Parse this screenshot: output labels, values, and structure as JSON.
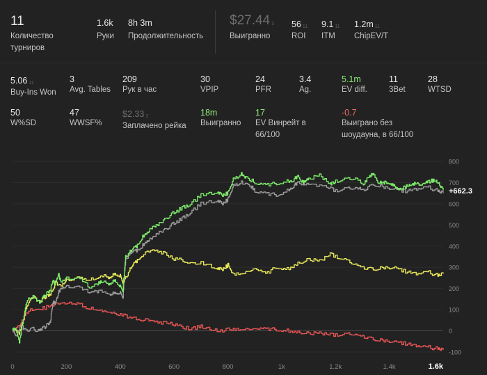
{
  "top_stats": {
    "tournaments": {
      "value": "11",
      "label": "Количество турниров"
    },
    "hands": {
      "value": "1.6k",
      "label": "Руки"
    },
    "duration": {
      "value": "8h 3m",
      "label": "Продолжительность"
    },
    "won": {
      "value": "$27.44",
      "sub": "3",
      "label": "Выигранно"
    },
    "roi": {
      "value": "56",
      "sub": "11",
      "label": "ROI"
    },
    "itm": {
      "value": "9.1",
      "sub": "11",
      "label": "ITM"
    },
    "chipev": {
      "value": "1.2m",
      "sub": "11",
      "label": "ChipEV/T"
    }
  },
  "stats_row1": [
    {
      "value": "5.06",
      "sub": "11",
      "label": "Buy-Ins Won",
      "color": "#e8e8e8"
    },
    {
      "value": "3",
      "sub": "",
      "label": "Avg. Tables",
      "color": "#e8e8e8"
    },
    {
      "value": "209",
      "sub": "",
      "label": "Рук в час",
      "color": "#e8e8e8"
    },
    {
      "value": "30",
      "sub": "",
      "label": "VPIP",
      "color": "#e8e8e8"
    },
    {
      "value": "24",
      "sub": "",
      "label": "PFR",
      "color": "#e8e8e8"
    },
    {
      "value": "3.4",
      "sub": "",
      "label": "Ag.",
      "color": "#e8e8e8"
    },
    {
      "value": "5.1m",
      "sub": "",
      "label": "EV diff.",
      "color": "#8fea7a"
    },
    {
      "value": "11",
      "sub": "",
      "label": "3Bet",
      "color": "#e8e8e8"
    },
    {
      "value": "28",
      "sub": "",
      "label": "WTSD",
      "color": "#e8e8e8"
    }
  ],
  "stats_row2": [
    {
      "value": "50",
      "sub": "",
      "label": "W%SD",
      "color": "#e8e8e8"
    },
    {
      "value": "47",
      "sub": "",
      "label": "WWSF%",
      "color": "#e8e8e8"
    },
    {
      "value": "$2.33",
      "sub": "3",
      "label": "Заплачено рейка",
      "color": "#6f6f6f"
    },
    {
      "value": "18m",
      "sub": "",
      "label": "Выигранно",
      "color": "#8fea7a"
    },
    {
      "value": "17",
      "sub": "",
      "label": "EV Винрейт в 66/100",
      "color": "#8fea7a"
    },
    {
      "value": "-0.7",
      "sub": "",
      "label": "Выиграно без шоудауна, в 66/100",
      "color": "#ef6a6a"
    }
  ],
  "chart_data": {
    "type": "line",
    "x_ticks": [
      "0",
      "200",
      "400",
      "600",
      "800",
      "1k",
      "1.2k",
      "1.4k",
      "1.6k"
    ],
    "y_ticks": [
      "800",
      "700",
      "600",
      "500",
      "400",
      "300",
      "200",
      "100",
      "0",
      "-100"
    ],
    "xlim": [
      0,
      1600
    ],
    "ylim": [
      -100,
      800
    ],
    "end_label": "+662.3",
    "grid": true,
    "series": [
      {
        "color": "#7de86a",
        "points": [
          [
            0,
            0
          ],
          [
            10,
            20
          ],
          [
            25,
            -50
          ],
          [
            40,
            60
          ],
          [
            55,
            150
          ],
          [
            80,
            160
          ],
          [
            100,
            130
          ],
          [
            120,
            170
          ],
          [
            140,
            190
          ],
          [
            150,
            240
          ],
          [
            160,
            220
          ],
          [
            170,
            270
          ],
          [
            180,
            230
          ],
          [
            200,
            250
          ],
          [
            260,
            240
          ],
          [
            290,
            200
          ],
          [
            320,
            230
          ],
          [
            340,
            230
          ],
          [
            360,
            220
          ],
          [
            380,
            240
          ],
          [
            400,
            210
          ],
          [
            410,
            190
          ],
          [
            420,
            350
          ],
          [
            440,
            380
          ],
          [
            460,
            400
          ],
          [
            480,
            440
          ],
          [
            500,
            460
          ],
          [
            520,
            490
          ],
          [
            540,
            500
          ],
          [
            570,
            530
          ],
          [
            600,
            560
          ],
          [
            630,
            580
          ],
          [
            660,
            600
          ],
          [
            700,
            640
          ],
          [
            760,
            660
          ],
          [
            780,
            640
          ],
          [
            800,
            650
          ],
          [
            820,
            720
          ],
          [
            850,
            740
          ],
          [
            870,
            725
          ],
          [
            900,
            700
          ],
          [
            940,
            690
          ],
          [
            980,
            695
          ],
          [
            1020,
            705
          ],
          [
            1040,
            710
          ],
          [
            1060,
            730
          ],
          [
            1080,
            700
          ],
          [
            1100,
            720
          ],
          [
            1140,
            735
          ],
          [
            1180,
            690
          ],
          [
            1200,
            705
          ],
          [
            1240,
            715
          ],
          [
            1280,
            720
          ],
          [
            1300,
            690
          ],
          [
            1320,
            720
          ],
          [
            1340,
            745
          ],
          [
            1360,
            700
          ],
          [
            1380,
            700
          ],
          [
            1400,
            700
          ],
          [
            1420,
            680
          ],
          [
            1440,
            670
          ],
          [
            1460,
            680
          ],
          [
            1480,
            690
          ],
          [
            1500,
            700
          ],
          [
            1520,
            690
          ],
          [
            1540,
            700
          ],
          [
            1560,
            710
          ],
          [
            1580,
            700
          ],
          [
            1600,
            662.3
          ]
        ]
      },
      {
        "color": "#9a9a9a",
        "points": [
          [
            0,
            0
          ],
          [
            15,
            -20
          ],
          [
            30,
            30
          ],
          [
            50,
            0
          ],
          [
            70,
            10
          ],
          [
            100,
            0
          ],
          [
            120,
            20
          ],
          [
            140,
            40
          ],
          [
            150,
            140
          ],
          [
            160,
            130
          ],
          [
            170,
            180
          ],
          [
            180,
            200
          ],
          [
            200,
            210
          ],
          [
            260,
            200
          ],
          [
            290,
            180
          ],
          [
            320,
            190
          ],
          [
            360,
            170
          ],
          [
            380,
            180
          ],
          [
            400,
            180
          ],
          [
            410,
            160
          ],
          [
            420,
            340
          ],
          [
            440,
            370
          ],
          [
            460,
            380
          ],
          [
            480,
            400
          ],
          [
            500,
            420
          ],
          [
            520,
            440
          ],
          [
            540,
            460
          ],
          [
            570,
            480
          ],
          [
            600,
            510
          ],
          [
            630,
            530
          ],
          [
            660,
            560
          ],
          [
            700,
            600
          ],
          [
            760,
            620
          ],
          [
            780,
            600
          ],
          [
            800,
            620
          ],
          [
            820,
            690
          ],
          [
            850,
            700
          ],
          [
            880,
            690
          ],
          [
            900,
            660
          ],
          [
            940,
            650
          ],
          [
            980,
            640
          ],
          [
            1020,
            660
          ],
          [
            1040,
            680
          ],
          [
            1060,
            700
          ],
          [
            1100,
            690
          ],
          [
            1160,
            680
          ],
          [
            1200,
            660
          ],
          [
            1240,
            670
          ],
          [
            1280,
            675
          ],
          [
            1300,
            665
          ],
          [
            1340,
            690
          ],
          [
            1380,
            680
          ],
          [
            1420,
            670
          ],
          [
            1460,
            660
          ],
          [
            1500,
            670
          ],
          [
            1540,
            680
          ],
          [
            1580,
            660
          ],
          [
            1600,
            650
          ]
        ]
      },
      {
        "color": "#e8e85a",
        "points": [
          [
            0,
            0
          ],
          [
            10,
            15
          ],
          [
            25,
            -10
          ],
          [
            40,
            60
          ],
          [
            60,
            140
          ],
          [
            80,
            165
          ],
          [
            100,
            130
          ],
          [
            120,
            160
          ],
          [
            140,
            170
          ],
          [
            160,
            230
          ],
          [
            180,
            210
          ],
          [
            200,
            240
          ],
          [
            260,
            250
          ],
          [
            300,
            240
          ],
          [
            340,
            260
          ],
          [
            360,
            250
          ],
          [
            380,
            270
          ],
          [
            400,
            260
          ],
          [
            410,
            230
          ],
          [
            420,
            250
          ],
          [
            440,
            300
          ],
          [
            460,
            330
          ],
          [
            480,
            360
          ],
          [
            520,
            380
          ],
          [
            560,
            370
          ],
          [
            600,
            340
          ],
          [
            640,
            330
          ],
          [
            700,
            320
          ],
          [
            760,
            300
          ],
          [
            780,
            290
          ],
          [
            800,
            310
          ],
          [
            820,
            270
          ],
          [
            860,
            275
          ],
          [
            900,
            300
          ],
          [
            940,
            270
          ],
          [
            980,
            300
          ],
          [
            1020,
            290
          ],
          [
            1060,
            320
          ],
          [
            1100,
            340
          ],
          [
            1140,
            330
          ],
          [
            1180,
            360
          ],
          [
            1220,
            340
          ],
          [
            1260,
            320
          ],
          [
            1300,
            300
          ],
          [
            1340,
            290
          ],
          [
            1380,
            300
          ],
          [
            1420,
            300
          ],
          [
            1460,
            280
          ],
          [
            1500,
            270
          ],
          [
            1540,
            280
          ],
          [
            1580,
            260
          ],
          [
            1600,
            270
          ]
        ]
      },
      {
        "color": "#e85555",
        "points": [
          [
            0,
            0
          ],
          [
            30,
            40
          ],
          [
            60,
            100
          ],
          [
            100,
            100
          ],
          [
            140,
            120
          ],
          [
            170,
            130
          ],
          [
            220,
            130
          ],
          [
            260,
            120
          ],
          [
            300,
            100
          ],
          [
            340,
            90
          ],
          [
            380,
            80
          ],
          [
            420,
            70
          ],
          [
            460,
            60
          ],
          [
            500,
            50
          ],
          [
            540,
            40
          ],
          [
            580,
            40
          ],
          [
            620,
            20
          ],
          [
            660,
            10
          ],
          [
            700,
            20
          ],
          [
            740,
            10
          ],
          [
            780,
            0
          ],
          [
            820,
            10
          ],
          [
            860,
            10
          ],
          [
            900,
            15
          ],
          [
            940,
            10
          ],
          [
            980,
            5
          ],
          [
            1020,
            0
          ],
          [
            1060,
            -5
          ],
          [
            1100,
            -10
          ],
          [
            1140,
            -10
          ],
          [
            1180,
            -20
          ],
          [
            1220,
            -20
          ],
          [
            1260,
            -15
          ],
          [
            1300,
            -25
          ],
          [
            1340,
            -40
          ],
          [
            1380,
            -45
          ],
          [
            1420,
            -50
          ],
          [
            1460,
            -60
          ],
          [
            1500,
            -70
          ],
          [
            1540,
            -75
          ],
          [
            1580,
            -85
          ],
          [
            1600,
            -90
          ]
        ]
      }
    ]
  }
}
